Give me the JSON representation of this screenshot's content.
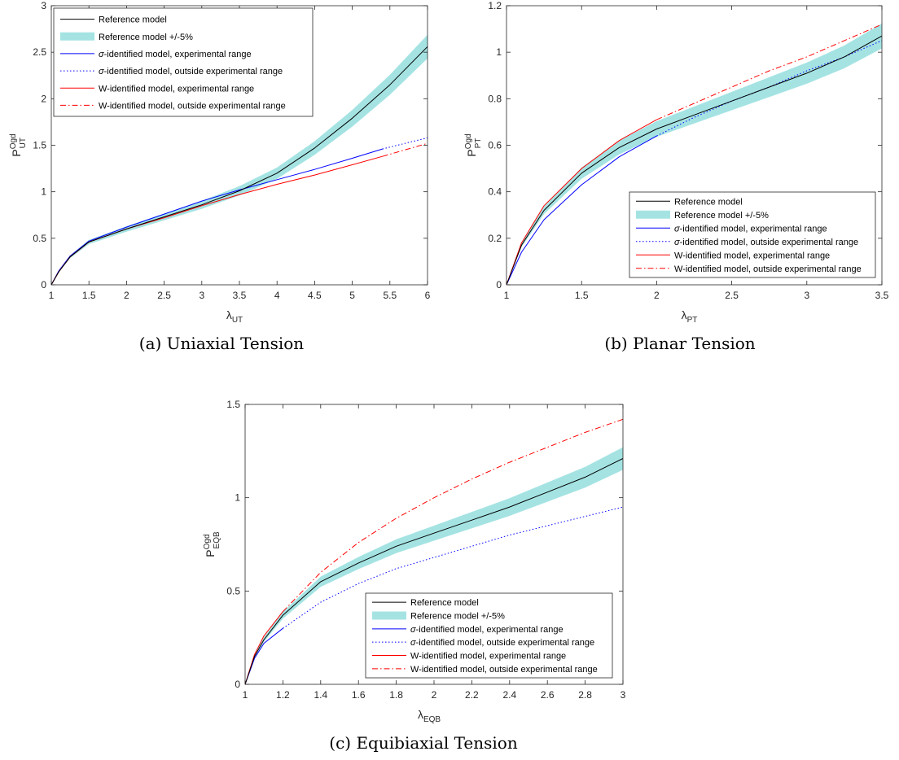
{
  "colors": {
    "reference": "#000000",
    "band": "#a5e3e3",
    "sigma": "#0000ff",
    "w_model": "#ff0000",
    "axis": "#262626"
  },
  "legend_entries": [
    {
      "key": "ref",
      "label": "Reference model",
      "style": "solid",
      "color": "#000000"
    },
    {
      "key": "band",
      "label": "Reference model +/-5%",
      "style": "band",
      "color": "#a5e3e3"
    },
    {
      "key": "sig_exp",
      "label_prefix": "σ",
      "label": "-identified model, experimental range",
      "style": "solid",
      "color": "#0000ff"
    },
    {
      "key": "sig_out",
      "label_prefix": "σ",
      "label": "-identified model, outside experimental range",
      "style": "dotted",
      "color": "#0000ff"
    },
    {
      "key": "w_exp",
      "label": "W-identified model, experimental range",
      "style": "solid",
      "color": "#ff0000"
    },
    {
      "key": "w_out",
      "label": "W-identified model, outside experimental range",
      "style": "dashdot",
      "color": "#ff0000"
    }
  ],
  "chart_data": [
    {
      "id": "ut",
      "type": "line",
      "caption": "(a) Uniaxial Tension",
      "ylabel": {
        "main": "P",
        "sup": "Ogd",
        "sub": "UT"
      },
      "xlabel": {
        "main": "λ",
        "sub": "UT"
      },
      "xlim": [
        1,
        6
      ],
      "ylim": [
        0,
        3
      ],
      "xticks": [
        1,
        1.5,
        2,
        2.5,
        3,
        3.5,
        4,
        4.5,
        5,
        5.5,
        6
      ],
      "yticks": [
        0,
        0.5,
        1,
        1.5,
        2,
        2.5,
        3
      ],
      "ytick_labels": [
        "0",
        "0.5",
        "1",
        "1.5",
        "2",
        "2.5",
        "3"
      ],
      "legend_position": "top-left",
      "series": {
        "ref": {
          "x": [
            1,
            1.1,
            1.25,
            1.5,
            2,
            2.5,
            3,
            3.5,
            4,
            4.5,
            5,
            5.5,
            6
          ],
          "y": [
            0,
            0.14,
            0.3,
            0.46,
            0.6,
            0.73,
            0.86,
            1.01,
            1.2,
            1.47,
            1.79,
            2.15,
            2.56
          ]
        },
        "band_pct": 5,
        "sig_exp": {
          "x": [
            1,
            1.1,
            1.25,
            1.5,
            2,
            2.5,
            3,
            3.5,
            4,
            4.5,
            5,
            5.4
          ],
          "y": [
            0,
            0.15,
            0.31,
            0.47,
            0.62,
            0.76,
            0.9,
            1.02,
            1.13,
            1.24,
            1.36,
            1.46
          ]
        },
        "sig_out": {
          "x": [
            5.4,
            5.7,
            6
          ],
          "y": [
            1.46,
            1.52,
            1.58
          ]
        },
        "w_exp": {
          "x": [
            1,
            1.1,
            1.25,
            1.5,
            2,
            2.5,
            3,
            3.5,
            4,
            4.5,
            5,
            5.4
          ],
          "y": [
            0,
            0.14,
            0.3,
            0.46,
            0.6,
            0.72,
            0.85,
            0.97,
            1.08,
            1.18,
            1.29,
            1.38
          ]
        },
        "w_out": {
          "x": [
            5.4,
            5.7,
            6
          ],
          "y": [
            1.38,
            1.45,
            1.52
          ]
        }
      }
    },
    {
      "id": "pt",
      "type": "line",
      "caption": "(b) Planar Tension",
      "ylabel": {
        "main": "P",
        "sup": "Ogd",
        "sub": "PT"
      },
      "xlabel": {
        "main": "λ",
        "sub": "PT"
      },
      "xlim": [
        1,
        3.5
      ],
      "ylim": [
        0,
        1.2
      ],
      "xticks": [
        1,
        1.5,
        2,
        2.5,
        3,
        3.5
      ],
      "yticks": [
        0,
        0.2,
        0.4,
        0.6,
        0.8,
        1,
        1.2
      ],
      "ytick_labels": [
        "0",
        "0.2",
        "0.4",
        "0.6",
        "0.8",
        "1",
        "1.2"
      ],
      "legend_position": "bottom-right",
      "series": {
        "ref": {
          "x": [
            1,
            1.1,
            1.25,
            1.5,
            1.75,
            2,
            2.25,
            2.5,
            2.75,
            3,
            3.25,
            3.5
          ],
          "y": [
            0,
            0.17,
            0.32,
            0.48,
            0.59,
            0.67,
            0.73,
            0.79,
            0.85,
            0.91,
            0.98,
            1.07
          ]
        },
        "band_pct": 5,
        "sig_exp": {
          "x": [
            1,
            1.1,
            1.25,
            1.5,
            1.75,
            2
          ],
          "y": [
            0,
            0.14,
            0.28,
            0.43,
            0.55,
            0.64
          ]
        },
        "sig_out": {
          "x": [
            2,
            2.25,
            2.5,
            2.75,
            3,
            3.25,
            3.5
          ],
          "y": [
            0.64,
            0.72,
            0.79,
            0.85,
            0.92,
            0.98,
            1.05
          ]
        },
        "w_exp": {
          "x": [
            1,
            1.1,
            1.25,
            1.5,
            1.75,
            2
          ],
          "y": [
            0,
            0.18,
            0.34,
            0.5,
            0.62,
            0.71
          ]
        },
        "w_out": {
          "x": [
            2,
            2.25,
            2.5,
            2.75,
            3,
            3.25,
            3.5
          ],
          "y": [
            0.71,
            0.78,
            0.85,
            0.92,
            0.98,
            1.05,
            1.12
          ]
        }
      }
    },
    {
      "id": "eqb",
      "type": "line",
      "caption": "(c) Equibiaxial Tension",
      "ylabel": {
        "main": "P",
        "sup": "Ogd",
        "sub": "EQB"
      },
      "xlabel": {
        "main": "λ",
        "sub": "EQB"
      },
      "xlim": [
        1,
        3
      ],
      "ylim": [
        0,
        1.5
      ],
      "xticks": [
        1,
        1.2,
        1.4,
        1.6,
        1.8,
        2,
        2.2,
        2.4,
        2.6,
        2.8,
        3
      ],
      "yticks": [
        0,
        0.5,
        1,
        1.5
      ],
      "ytick_labels": [
        "0",
        "0.5",
        "1",
        "1.5"
      ],
      "legend_position": "bottom-right",
      "series": {
        "ref": {
          "x": [
            1,
            1.05,
            1.1,
            1.2,
            1.4,
            1.6,
            1.8,
            2,
            2.2,
            2.4,
            2.6,
            2.8,
            3
          ],
          "y": [
            0,
            0.15,
            0.24,
            0.37,
            0.55,
            0.65,
            0.74,
            0.81,
            0.88,
            0.95,
            1.03,
            1.11,
            1.21
          ]
        },
        "band_pct": 5,
        "sig_exp": {
          "x": [
            1,
            1.05,
            1.1,
            1.2
          ],
          "y": [
            0,
            0.14,
            0.22,
            0.3
          ]
        },
        "sig_out": {
          "x": [
            1.2,
            1.4,
            1.6,
            1.8,
            2,
            2.2,
            2.4,
            2.6,
            2.8,
            3
          ],
          "y": [
            0.3,
            0.44,
            0.54,
            0.62,
            0.68,
            0.74,
            0.8,
            0.85,
            0.9,
            0.95
          ]
        },
        "w_exp": {
          "x": [
            1,
            1.05,
            1.1,
            1.2
          ],
          "y": [
            0,
            0.16,
            0.26,
            0.39
          ]
        },
        "w_out": {
          "x": [
            1.2,
            1.4,
            1.6,
            1.8,
            2,
            2.2,
            2.4,
            2.6,
            2.8,
            3
          ],
          "y": [
            0.39,
            0.6,
            0.76,
            0.89,
            1.0,
            1.1,
            1.19,
            1.27,
            1.35,
            1.42
          ]
        }
      }
    }
  ]
}
